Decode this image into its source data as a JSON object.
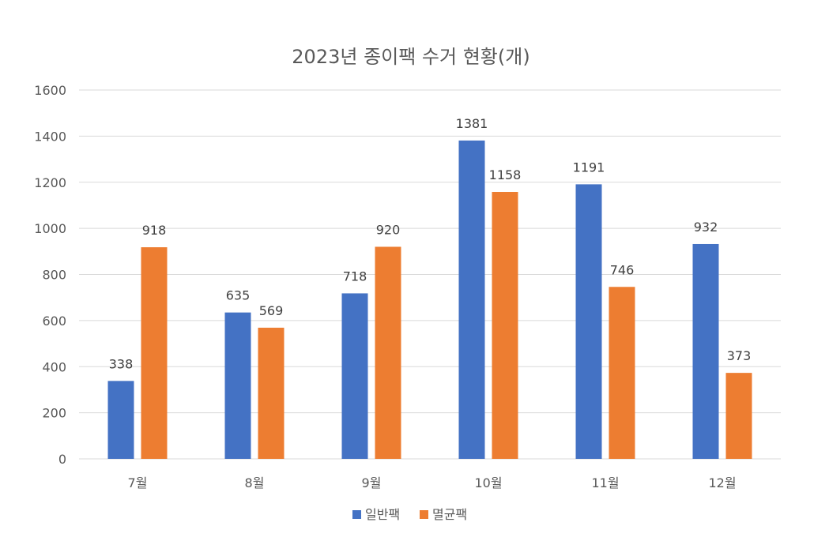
{
  "chart_data": {
    "type": "bar",
    "title": "2023년 종이팩 수거 현황(개)",
    "categories": [
      "7월",
      "8월",
      "9월",
      "10월",
      "11월",
      "12월"
    ],
    "series": [
      {
        "name": "일반팩",
        "color": "#4472C4",
        "values": [
          338,
          635,
          718,
          1381,
          1191,
          932
        ]
      },
      {
        "name": "멸균팩",
        "color": "#ED7D31",
        "values": [
          918,
          569,
          920,
          1158,
          746,
          373
        ]
      }
    ],
    "ylim": [
      0,
      1600
    ],
    "yticks": [
      0,
      200,
      400,
      600,
      800,
      1000,
      1200,
      1400,
      1600
    ],
    "grid": true,
    "legend_position": "bottom",
    "xlabel": "",
    "ylabel": ""
  }
}
